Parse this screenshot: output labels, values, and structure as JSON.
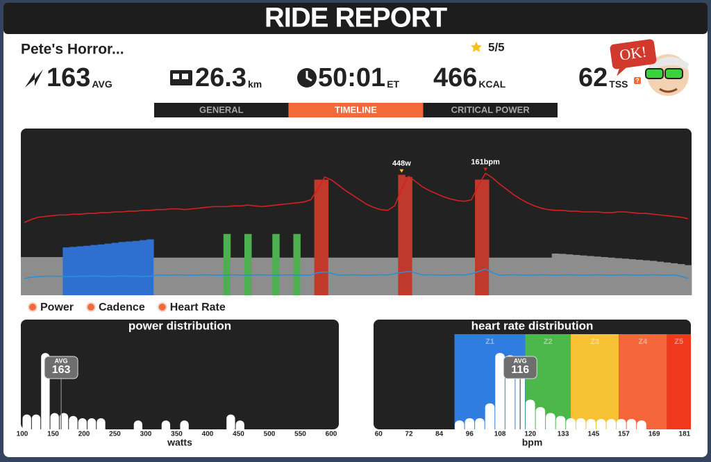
{
  "header": {
    "title": "RIDE REPORT"
  },
  "ride": {
    "name": "Pete's Horror...",
    "rating": "5/5"
  },
  "stats": [
    {
      "value": "163",
      "unit": "AVG"
    },
    {
      "value": "26.3",
      "unit": "km"
    },
    {
      "value": "50:01",
      "unit": "ET"
    },
    {
      "value": "466",
      "unit": "KCAL"
    },
    {
      "value": "62",
      "unit": "TSS"
    }
  ],
  "tss_help": "?",
  "badge": "OK!",
  "tabs": {
    "items": [
      "GENERAL",
      "TIMELINE",
      "CRITICAL POWER"
    ],
    "active": 1
  },
  "chart_data": [
    {
      "type": "timeline",
      "ylim": [
        0,
        620
      ],
      "y2lim": [
        0,
        220
      ],
      "y3lim": [
        0,
        700
      ],
      "series": [
        {
          "name": "Power",
          "values": [
            142,
            142,
            142,
            142,
            142,
            142,
            178,
            180,
            182,
            184,
            187,
            189,
            192,
            195,
            198,
            200,
            202,
            205,
            208,
            140,
            140,
            140,
            140,
            140,
            140,
            140,
            140,
            140,
            140,
            228,
            140,
            140,
            228,
            140,
            140,
            140,
            228,
            140,
            140,
            228,
            140,
            140,
            430,
            430,
            140,
            140,
            140,
            140,
            140,
            140,
            140,
            140,
            140,
            140,
            448,
            440,
            140,
            140,
            140,
            140,
            140,
            140,
            140,
            140,
            140,
            430,
            430,
            140,
            140,
            140,
            140,
            140,
            140,
            140,
            140,
            140,
            155,
            154,
            152,
            150,
            148,
            146,
            144,
            142,
            140,
            138,
            136,
            134,
            132,
            130,
            128,
            125,
            122,
            119,
            116,
            112
          ],
          "colors": [
            "#8d8d8d",
            "#8d8d8d",
            "#8d8d8d",
            "#8d8d8d",
            "#8d8d8d",
            "#8d8d8d",
            "#2f6fd0",
            "#2f6fd0",
            "#2f6fd0",
            "#2f6fd0",
            "#2f6fd0",
            "#2f6fd0",
            "#2f6fd0",
            "#2f6fd0",
            "#2f6fd0",
            "#2f6fd0",
            "#2f6fd0",
            "#2f6fd0",
            "#2f6fd0",
            "#8d8d8d",
            "#8d8d8d",
            "#8d8d8d",
            "#8d8d8d",
            "#8d8d8d",
            "#8d8d8d",
            "#8d8d8d",
            "#8d8d8d",
            "#8d8d8d",
            "#8d8d8d",
            "#4caf50",
            "#8d8d8d",
            "#8d8d8d",
            "#4caf50",
            "#8d8d8d",
            "#8d8d8d",
            "#8d8d8d",
            "#4caf50",
            "#8d8d8d",
            "#8d8d8d",
            "#4caf50",
            "#8d8d8d",
            "#8d8d8d",
            "#c0392b",
            "#c0392b",
            "#8d8d8d",
            "#8d8d8d",
            "#8d8d8d",
            "#8d8d8d",
            "#8d8d8d",
            "#8d8d8d",
            "#8d8d8d",
            "#8d8d8d",
            "#8d8d8d",
            "#8d8d8d",
            "#c0392b",
            "#c0392b",
            "#8d8d8d",
            "#8d8d8d",
            "#8d8d8d",
            "#8d8d8d",
            "#8d8d8d",
            "#8d8d8d",
            "#8d8d8d",
            "#8d8d8d",
            "#8d8d8d",
            "#c0392b",
            "#c0392b",
            "#8d8d8d",
            "#8d8d8d",
            "#8d8d8d",
            "#8d8d8d",
            "#8d8d8d",
            "#8d8d8d",
            "#8d8d8d",
            "#8d8d8d",
            "#8d8d8d",
            "#8d8d8d",
            "#8d8d8d",
            "#8d8d8d",
            "#8d8d8d",
            "#8d8d8d",
            "#8d8d8d",
            "#8d8d8d",
            "#8d8d8d",
            "#8d8d8d",
            "#8d8d8d",
            "#8d8d8d",
            "#8d8d8d",
            "#8d8d8d",
            "#8d8d8d",
            "#8d8d8d",
            "#8d8d8d",
            "#8d8d8d",
            "#8d8d8d",
            "#8d8d8d",
            "#8d8d8d"
          ]
        },
        {
          "name": "Cadence",
          "color": "#2a8fd6",
          "axis": "y3",
          "values": [
            70,
            76,
            78,
            80,
            80,
            80,
            78,
            79,
            80,
            80,
            81,
            80,
            79,
            80,
            81,
            80,
            80,
            79,
            80,
            84,
            85,
            84,
            86,
            85,
            84,
            85,
            86,
            85,
            84,
            85,
            86,
            85,
            84,
            85,
            86,
            85,
            84,
            85,
            86,
            85,
            84,
            85,
            95,
            98,
            92,
            84,
            85,
            86,
            85,
            84,
            85,
            86,
            85,
            90,
            96,
            100,
            94,
            85,
            86,
            85,
            84,
            85,
            86,
            85,
            90,
            100,
            110,
            95,
            84,
            85,
            86,
            85,
            84,
            85,
            86,
            85,
            84,
            85,
            86,
            85,
            84,
            85,
            86,
            85,
            84,
            85,
            86,
            85,
            84,
            85,
            86,
            85,
            84,
            85,
            80,
            70
          ]
        },
        {
          "name": "Heart Rate",
          "color": "#d62020",
          "axis": "y2",
          "values": [
            96,
            100,
            103,
            104,
            105,
            106,
            106,
            107,
            107,
            108,
            108,
            109,
            109,
            110,
            110,
            111,
            111,
            112,
            112,
            113,
            113,
            114,
            114,
            113,
            114,
            115,
            116,
            117,
            117,
            117,
            118,
            118,
            119,
            118,
            117,
            118,
            119,
            120,
            121,
            122,
            123,
            126,
            140,
            156,
            152,
            145,
            138,
            132,
            126,
            120,
            116,
            113,
            112,
            118,
            140,
            157,
            150,
            143,
            138,
            134,
            130,
            127,
            125,
            124,
            126,
            145,
            161,
            155,
            147,
            140,
            133,
            127,
            122,
            118,
            115,
            113,
            112,
            112,
            111,
            111,
            110,
            110,
            110,
            109,
            109,
            110,
            110,
            109,
            108,
            108,
            107,
            106,
            105,
            104,
            103,
            101
          ]
        }
      ],
      "annotations": [
        {
          "text": "448w",
          "series": "Power",
          "value": 448
        },
        {
          "text": "161bpm",
          "series": "Heart Rate",
          "value": 161
        }
      ]
    },
    {
      "type": "histogram",
      "title": "power distribution",
      "xlabel": "watts",
      "color": "#ffffff",
      "bins": [
        100,
        115,
        130,
        145,
        160,
        175,
        190,
        205,
        220,
        235,
        250,
        265,
        280,
        295,
        310,
        325,
        340,
        355,
        370,
        385,
        400,
        415,
        430,
        445,
        460,
        475
      ],
      "values": [
        20,
        20,
        103,
        22,
        22,
        18,
        15,
        15,
        15,
        0,
        0,
        0,
        12,
        0,
        0,
        12,
        0,
        12,
        0,
        0,
        0,
        0,
        20,
        12,
        0
      ],
      "xlim": [
        100,
        600
      ],
      "xticks": [
        100,
        150,
        200,
        250,
        300,
        350,
        400,
        450,
        500,
        550,
        600
      ],
      "ylim": [
        0,
        120
      ],
      "avg": 163,
      "avg_label": "AVG"
    },
    {
      "type": "histogram",
      "title": "heart rate distribution",
      "xlabel": "bpm",
      "color": "#ffffff",
      "bins": [
        90,
        94,
        98,
        102,
        106,
        110,
        114,
        118,
        122,
        126,
        130,
        134,
        138,
        142,
        146,
        150,
        154,
        158,
        162,
        166
      ],
      "values": [
        12,
        15,
        15,
        35,
        103,
        100,
        75,
        40,
        30,
        22,
        18,
        15,
        15,
        14,
        14,
        14,
        14,
        14,
        12
      ],
      "xlim": [
        58,
        183.5
      ],
      "xticks": [
        60,
        72,
        84,
        96,
        108,
        120,
        133,
        145,
        157,
        169,
        181
      ],
      "ylim": [
        0,
        120
      ],
      "avg": 116,
      "avg_label": "AVG",
      "zones": [
        {
          "name": "Z1",
          "color": "#2f7de1",
          "from": 90,
          "to": 118
        },
        {
          "name": "Z2",
          "color": "#4cb84c",
          "from": 118,
          "to": 136
        },
        {
          "name": "Z3",
          "color": "#f7c234",
          "from": 136,
          "to": 155
        },
        {
          "name": "Z4",
          "color": "#f5673a",
          "from": 155,
          "to": 174
        },
        {
          "name": "Z5",
          "color": "#f0391c",
          "from": 174,
          "to": 183.5
        }
      ]
    }
  ]
}
